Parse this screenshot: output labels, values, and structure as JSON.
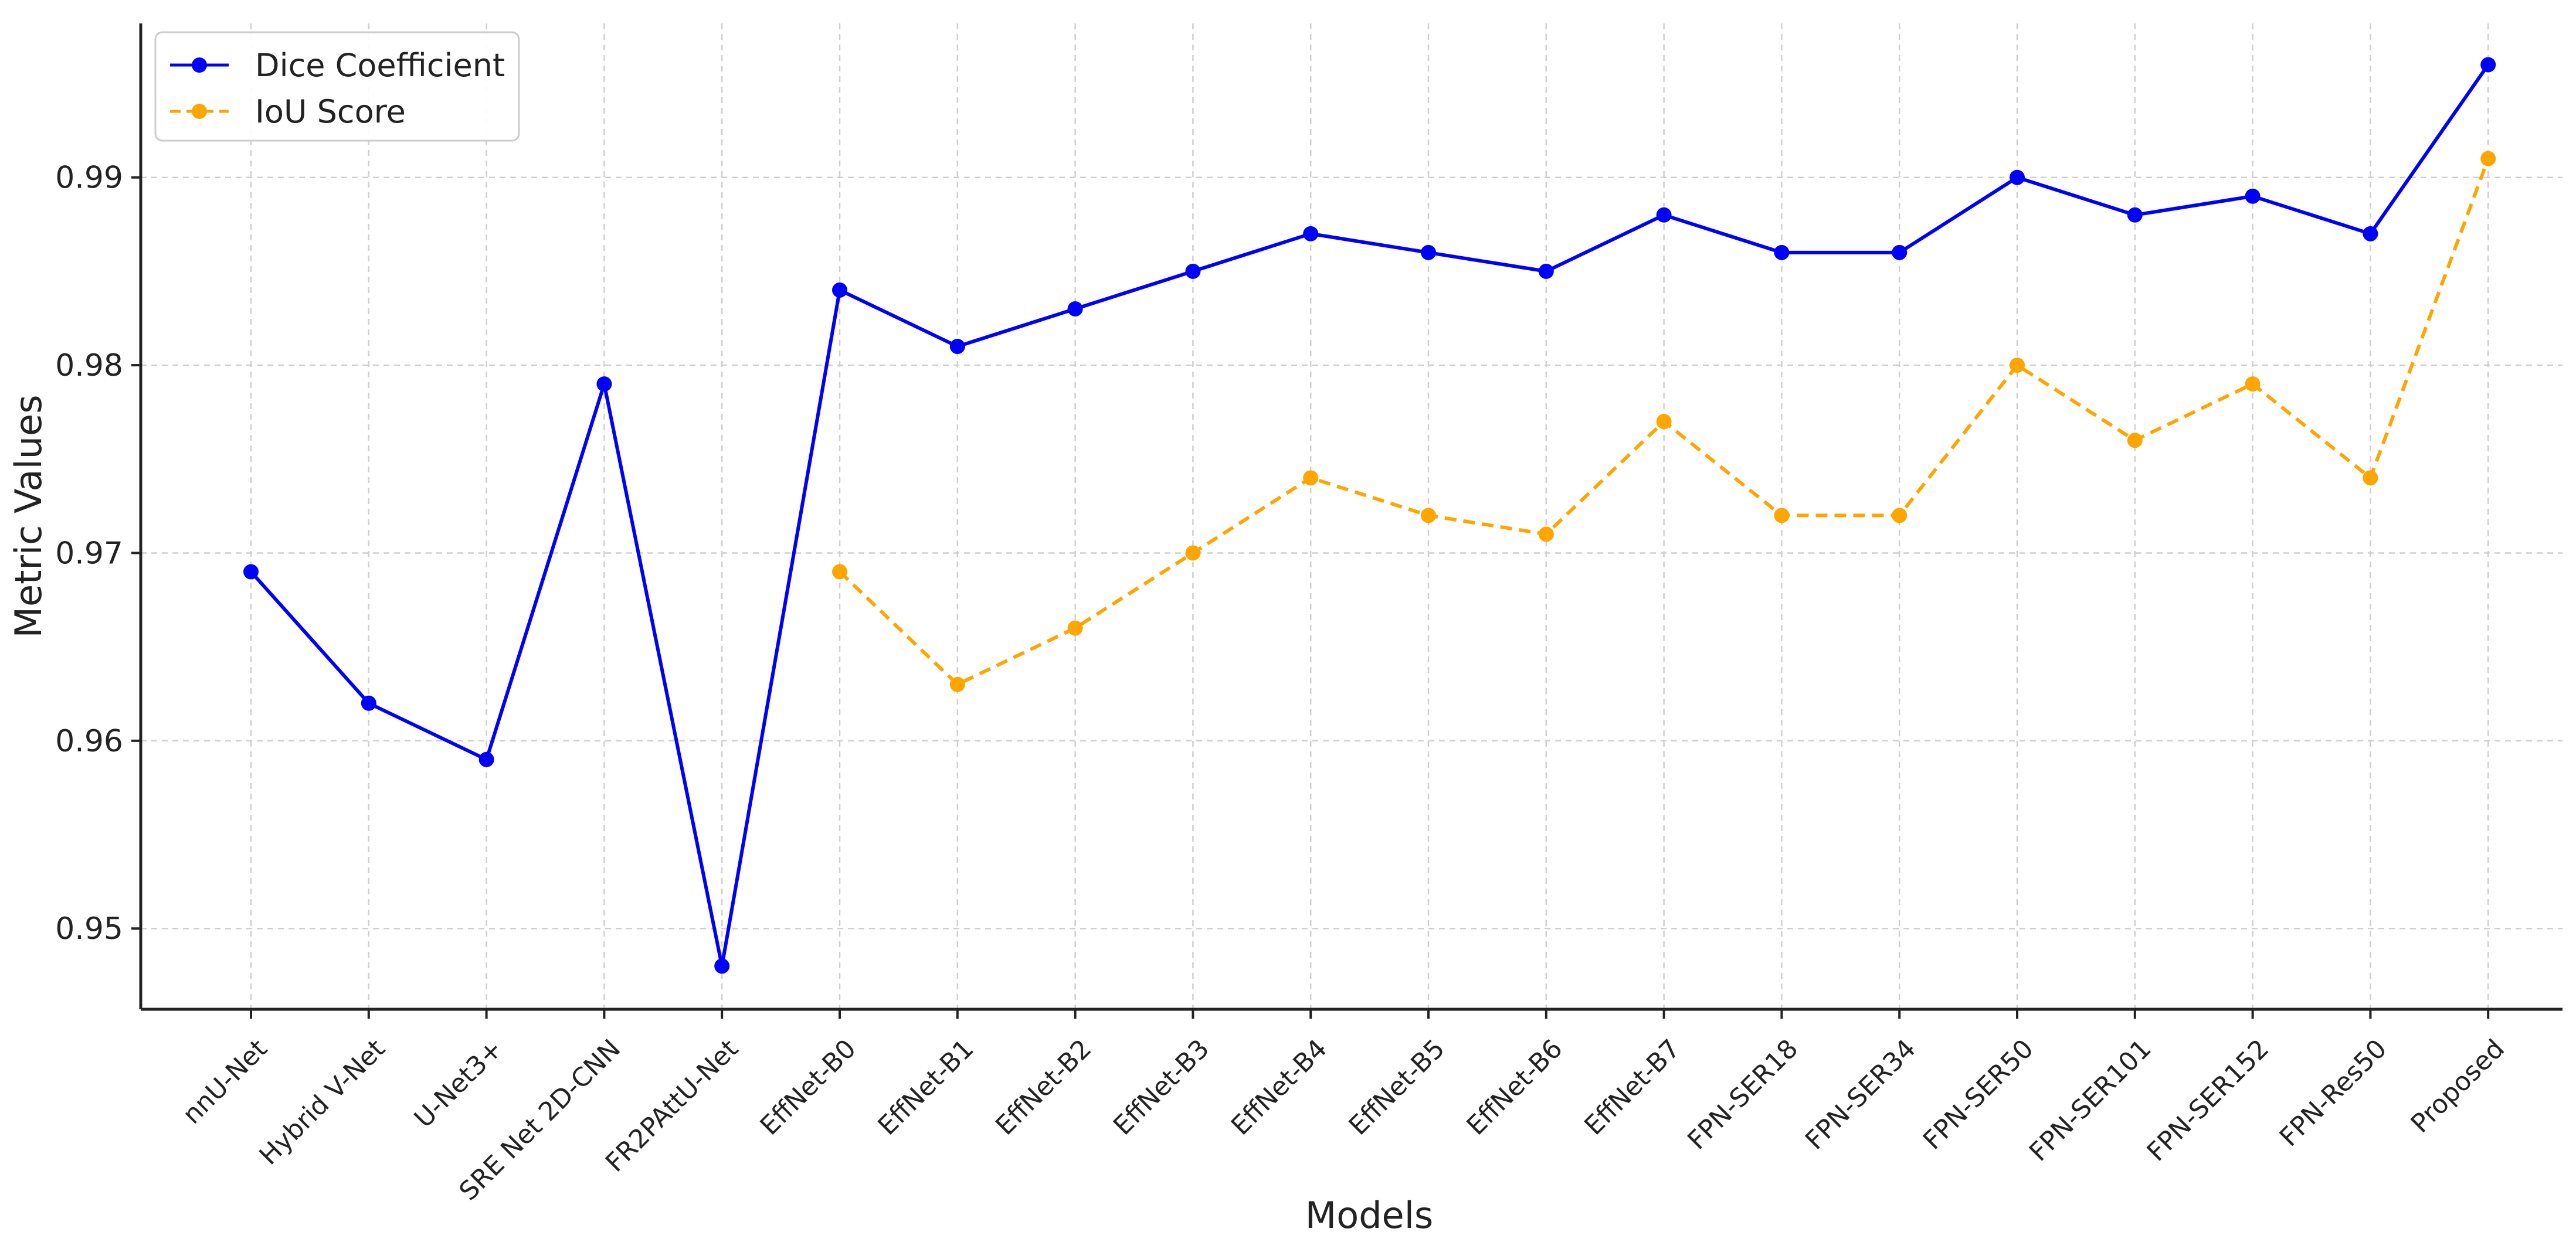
{
  "chart_data": {
    "type": "line",
    "xlabel": "Models",
    "ylabel": "Metric Values",
    "ylim": [
      0.9457,
      0.9982
    ],
    "yticks": [
      0.95,
      0.96,
      0.97,
      0.98,
      0.99
    ],
    "ytick_labels": [
      "0.95",
      "0.96",
      "0.97",
      "0.98",
      "0.99"
    ],
    "grid": true,
    "legend_position": "top-left",
    "categories": [
      "nnU-Net",
      "Hybrid V-Net",
      "U-Net3+",
      "SRE Net 2D-CNN",
      "FR2PAttU-Net",
      "EffNet-B0",
      "EffNet-B1",
      "EffNet-B2",
      "EffNet-B3",
      "EffNet-B4",
      "EffNet-B5",
      "EffNet-B6",
      "EffNet-B7",
      "FPN-SER18",
      "FPN-SER34",
      "FPN-SER50",
      "FPN-SER101",
      "FPN-SER152",
      "FPN-Res50",
      "Proposed"
    ],
    "series": [
      {
        "name": "Dice Coefficient",
        "color": "#0000ff",
        "line_style": "solid",
        "values": [
          0.969,
          0.962,
          0.959,
          0.979,
          0.948,
          0.984,
          0.981,
          0.983,
          0.985,
          0.987,
          0.986,
          0.985,
          0.988,
          0.986,
          0.986,
          0.99,
          0.988,
          0.989,
          0.987,
          0.996
        ]
      },
      {
        "name": "IoU Score",
        "color": "#ffa500",
        "line_style": "dashed",
        "values": [
          null,
          null,
          null,
          null,
          null,
          0.969,
          0.963,
          0.966,
          0.97,
          0.974,
          0.972,
          0.971,
          0.977,
          0.972,
          0.972,
          0.98,
          0.976,
          0.979,
          0.974,
          0.991
        ]
      }
    ]
  }
}
